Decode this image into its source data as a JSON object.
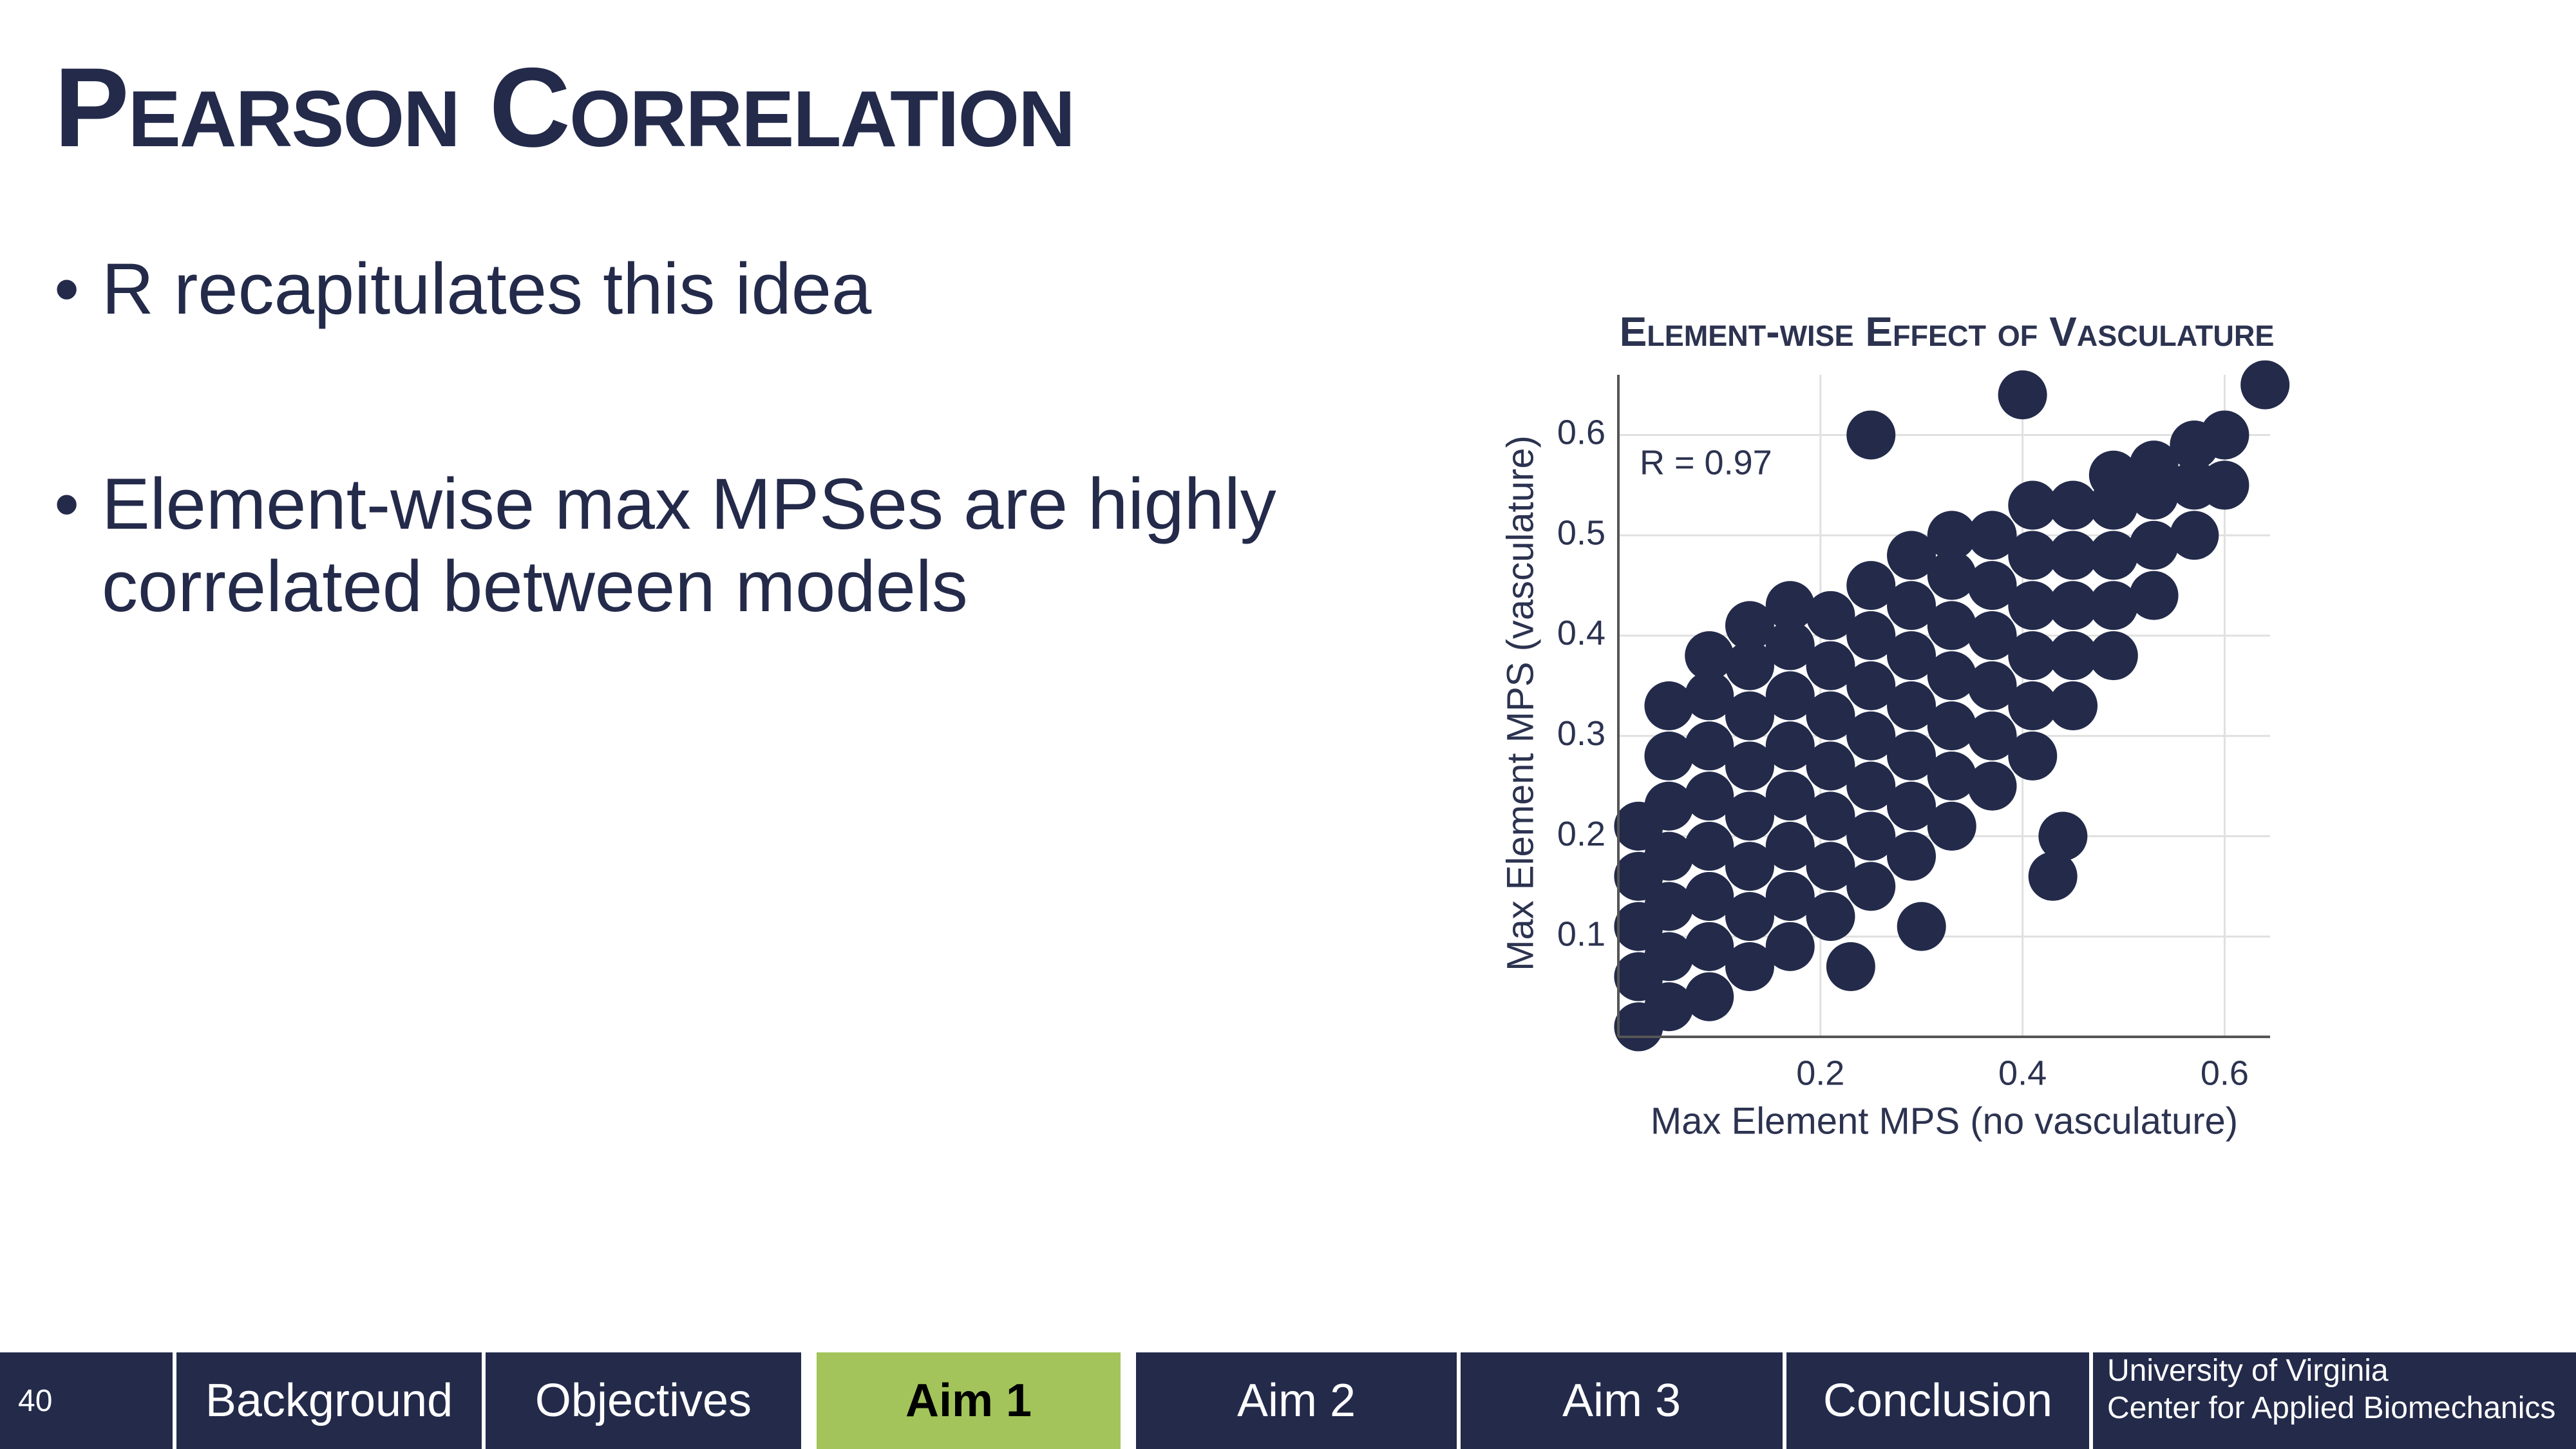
{
  "slide": {
    "title": "Pearson Correlation",
    "bullets": [
      "R recapitulates this idea",
      "Element-wise max MPSes are highly correlated between models"
    ]
  },
  "chart_data": {
    "type": "scatter",
    "title": "Element-wise Effect of Vasculature",
    "annotation": "R = 0.97",
    "x_label": "Max Element MPS (no vasculature)",
    "y_label": "Max Element MPS (vasculature)",
    "color": "#232a4a",
    "grid": true,
    "xlim": [
      0,
      0.645
    ],
    "ylim": [
      0,
      0.66
    ],
    "xticks": [
      0.2,
      0.4,
      0.6
    ],
    "yticks": [
      0.1,
      0.2,
      0.3,
      0.4,
      0.5,
      0.6
    ],
    "x": [
      0.02,
      0.02,
      0.02,
      0.02,
      0.02,
      0.05,
      0.05,
      0.05,
      0.05,
      0.05,
      0.05,
      0.05,
      0.09,
      0.09,
      0.09,
      0.09,
      0.09,
      0.09,
      0.09,
      0.09,
      0.13,
      0.13,
      0.13,
      0.13,
      0.13,
      0.13,
      0.13,
      0.13,
      0.17,
      0.17,
      0.17,
      0.17,
      0.17,
      0.17,
      0.17,
      0.17,
      0.21,
      0.21,
      0.21,
      0.21,
      0.21,
      0.21,
      0.21,
      0.25,
      0.25,
      0.25,
      0.25,
      0.25,
      0.25,
      0.25,
      0.29,
      0.29,
      0.29,
      0.29,
      0.29,
      0.29,
      0.29,
      0.33,
      0.33,
      0.33,
      0.33,
      0.33,
      0.33,
      0.33,
      0.37,
      0.37,
      0.37,
      0.37,
      0.37,
      0.37,
      0.41,
      0.41,
      0.41,
      0.41,
      0.41,
      0.41,
      0.45,
      0.45,
      0.45,
      0.45,
      0.45,
      0.49,
      0.49,
      0.49,
      0.49,
      0.49,
      0.53,
      0.53,
      0.53,
      0.53,
      0.57,
      0.57,
      0.57,
      0.6,
      0.6,
      0.25,
      0.4,
      0.64,
      0.23,
      0.3,
      0.43,
      0.44
    ],
    "y": [
      0.01,
      0.06,
      0.11,
      0.16,
      0.21,
      0.03,
      0.08,
      0.13,
      0.18,
      0.23,
      0.28,
      0.33,
      0.04,
      0.09,
      0.14,
      0.19,
      0.24,
      0.29,
      0.34,
      0.38,
      0.07,
      0.12,
      0.17,
      0.22,
      0.27,
      0.32,
      0.37,
      0.41,
      0.09,
      0.14,
      0.19,
      0.24,
      0.29,
      0.34,
      0.39,
      0.43,
      0.12,
      0.17,
      0.22,
      0.27,
      0.32,
      0.37,
      0.42,
      0.15,
      0.2,
      0.25,
      0.3,
      0.35,
      0.4,
      0.45,
      0.18,
      0.23,
      0.28,
      0.33,
      0.38,
      0.43,
      0.48,
      0.21,
      0.26,
      0.31,
      0.36,
      0.41,
      0.46,
      0.5,
      0.25,
      0.3,
      0.35,
      0.4,
      0.45,
      0.5,
      0.28,
      0.33,
      0.38,
      0.43,
      0.48,
      0.53,
      0.33,
      0.38,
      0.43,
      0.48,
      0.53,
      0.38,
      0.43,
      0.48,
      0.53,
      0.56,
      0.44,
      0.49,
      0.54,
      0.57,
      0.5,
      0.55,
      0.59,
      0.55,
      0.6,
      0.6,
      0.64,
      0.65,
      0.07,
      0.11,
      0.16,
      0.2
    ]
  },
  "footer": {
    "page": "40",
    "tabs": [
      "Background",
      "Objectives",
      "Aim 1",
      "Aim 2",
      "Aim 3",
      "Conclusion"
    ],
    "institution": [
      "University of Virginia",
      "Center for Applied Biomechanics"
    ]
  }
}
